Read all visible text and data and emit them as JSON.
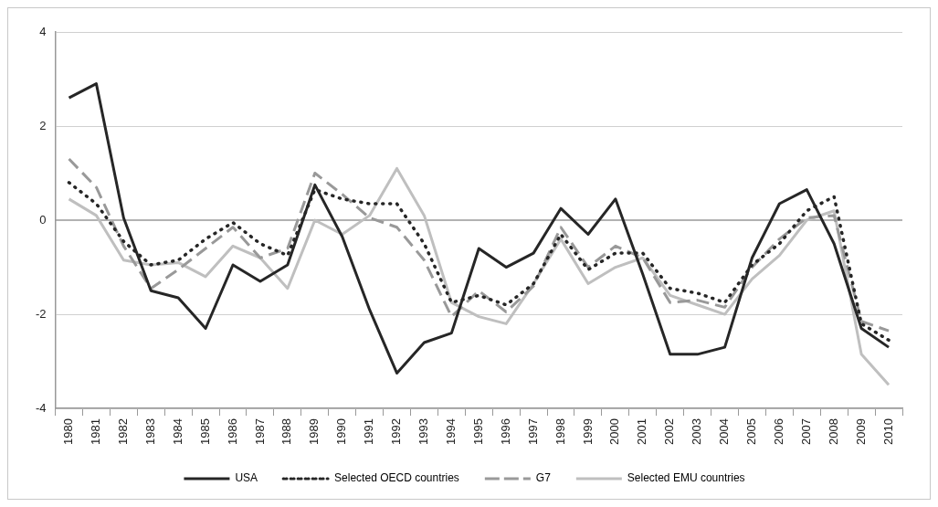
{
  "chart_data": {
    "type": "line",
    "categories": [
      "1980",
      "1981",
      "1982",
      "1983",
      "1984",
      "1985",
      "1986",
      "1987",
      "1988",
      "1989",
      "1990",
      "1991",
      "1992",
      "1993",
      "1994",
      "1995",
      "1996",
      "1997",
      "1998",
      "1999",
      "2000",
      "2001",
      "2002",
      "2003",
      "2004",
      "2005",
      "2006",
      "2007",
      "2008",
      "2009",
      "2010"
    ],
    "series": [
      {
        "name": "USA",
        "color": "#262626",
        "line_style": "solid",
        "values": [
          2.6,
          2.9,
          0.05,
          -1.5,
          -1.65,
          -2.3,
          -0.95,
          -1.3,
          -0.95,
          0.75,
          -0.35,
          -1.9,
          -3.25,
          -2.6,
          -2.4,
          -0.6,
          -1.0,
          -0.7,
          0.25,
          -0.3,
          0.45,
          -1.15,
          -2.85,
          -2.85,
          -2.7,
          -0.8,
          0.35,
          0.65,
          -0.5,
          -2.3,
          -2.7
        ]
      },
      {
        "name": "Selected OECD countries",
        "color": "#262626",
        "line_style": "dotted",
        "values": [
          0.8,
          0.35,
          -0.45,
          -0.95,
          -0.85,
          -0.4,
          -0.05,
          -0.5,
          -0.75,
          0.65,
          0.45,
          0.35,
          0.35,
          -0.5,
          -1.75,
          -1.6,
          -1.8,
          -1.35,
          -0.3,
          -1.05,
          -0.7,
          -0.7,
          -1.45,
          -1.55,
          -1.75,
          -0.95,
          -0.5,
          0.2,
          0.5,
          -2.2,
          -2.55
        ]
      },
      {
        "name": "G7",
        "color": "#999999",
        "line_style": "dashed",
        "values": [
          1.3,
          0.7,
          -0.55,
          -1.45,
          -1.05,
          -0.6,
          -0.15,
          -0.8,
          -0.6,
          1.0,
          0.55,
          0.05,
          -0.15,
          -0.85,
          -2.05,
          -1.5,
          -1.95,
          -1.4,
          -0.15,
          -1.0,
          -0.55,
          -0.8,
          -1.75,
          -1.7,
          -1.85,
          -1.0,
          -0.4,
          0.05,
          0.1,
          -2.15,
          -2.35
        ]
      },
      {
        "name": "Selected EMU countries",
        "color": "#bfbfbf",
        "line_style": "solid",
        "values": [
          0.45,
          0.1,
          -0.85,
          -0.95,
          -0.9,
          -1.2,
          -0.55,
          -0.8,
          -1.45,
          0.0,
          -0.3,
          0.1,
          1.1,
          0.1,
          -1.75,
          -2.05,
          -2.2,
          -1.35,
          -0.4,
          -1.35,
          -1.0,
          -0.8,
          -1.6,
          -1.8,
          -2.0,
          -1.25,
          -0.75,
          0.0,
          0.2,
          -2.85,
          -3.5
        ]
      }
    ],
    "ylim": [
      -4,
      4
    ],
    "yticks": [
      -4,
      -2,
      0,
      2,
      4
    ],
    "grid": "y",
    "legend": "bottom",
    "marker": "none",
    "ref_lines": [
      {
        "axis": "y",
        "value": 0,
        "color": "#999999"
      }
    ]
  }
}
